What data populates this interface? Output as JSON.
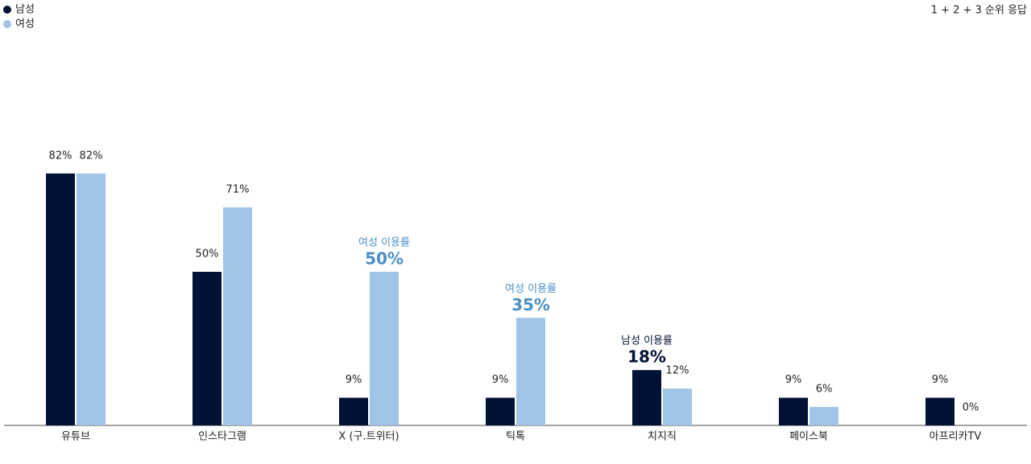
{
  "chart_data": {
    "type": "bar",
    "note": "1 + 2 + 3 순위 응답",
    "categories": [
      "유튜브",
      "인스타그램",
      "X (구.트위터)",
      "틱톡",
      "치지직",
      "페이스북",
      "아프리카TV"
    ],
    "series": [
      {
        "name": "남성",
        "color": "#021236",
        "values": [
          82,
          50,
          9,
          9,
          18,
          9,
          9
        ],
        "value_labels": [
          "82%",
          "50%",
          "9%",
          "9%",
          "18%",
          "9%",
          "9%"
        ]
      },
      {
        "name": "여성",
        "color": "#a0c4e6",
        "values": [
          82,
          71,
          50,
          35,
          12,
          6,
          0
        ],
        "value_labels": [
          "82%",
          "71%",
          "50%",
          "35%",
          "12%",
          "6%",
          "0%"
        ]
      }
    ],
    "ylim": [
      0,
      100
    ],
    "legend": "top-left",
    "highlights": [
      {
        "series": "여성",
        "category": "X (구.트위터)",
        "label": "여성 이용률",
        "color": "#4a90c8"
      },
      {
        "series": "여성",
        "category": "틱톡",
        "label": "여성 이용률",
        "color": "#4a90c8"
      },
      {
        "series": "남성",
        "category": "치지직",
        "label": "남성 이용률",
        "color": "#021236"
      }
    ]
  }
}
